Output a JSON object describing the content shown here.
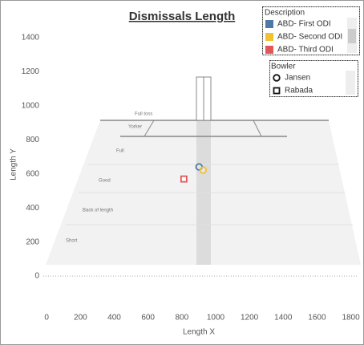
{
  "chart_data": {
    "type": "scatter",
    "title": "Dismissals Length",
    "x_label": "Length X",
    "y_label": "Length Y",
    "xlim": [
      -20,
      1840
    ],
    "ylim": [
      -240,
      1480
    ],
    "xticks": [
      0,
      200,
      400,
      600,
      800,
      1000,
      1200,
      1400,
      1600,
      1800
    ],
    "yticks": [
      0,
      200,
      400,
      600,
      800,
      1000,
      1200,
      1400
    ],
    "annotations": [
      "Full toss",
      "Yorker",
      "Full",
      "Good",
      "Back of length",
      "Short"
    ],
    "legend_title": "Description",
    "series": [
      {
        "name": "ABD- First ODI",
        "color": "#4e79a7",
        "shape": "circle",
        "x": [
          902
        ],
        "y": [
          641
        ]
      },
      {
        "name": "ABD- Second ODI",
        "color": "#f1c232",
        "shape": "circle",
        "x": [
          926
        ],
        "y": [
          622
        ]
      },
      {
        "name": "ABD- Third ODI",
        "color": "#e15759",
        "shape": "square",
        "x": [
          812
        ],
        "y": [
          570
        ]
      }
    ],
    "shape_legend": {
      "title": "Bowler",
      "entries": [
        {
          "name": "Jansen",
          "shape": "circle"
        },
        {
          "name": "Rabada",
          "shape": "square"
        }
      ]
    }
  }
}
